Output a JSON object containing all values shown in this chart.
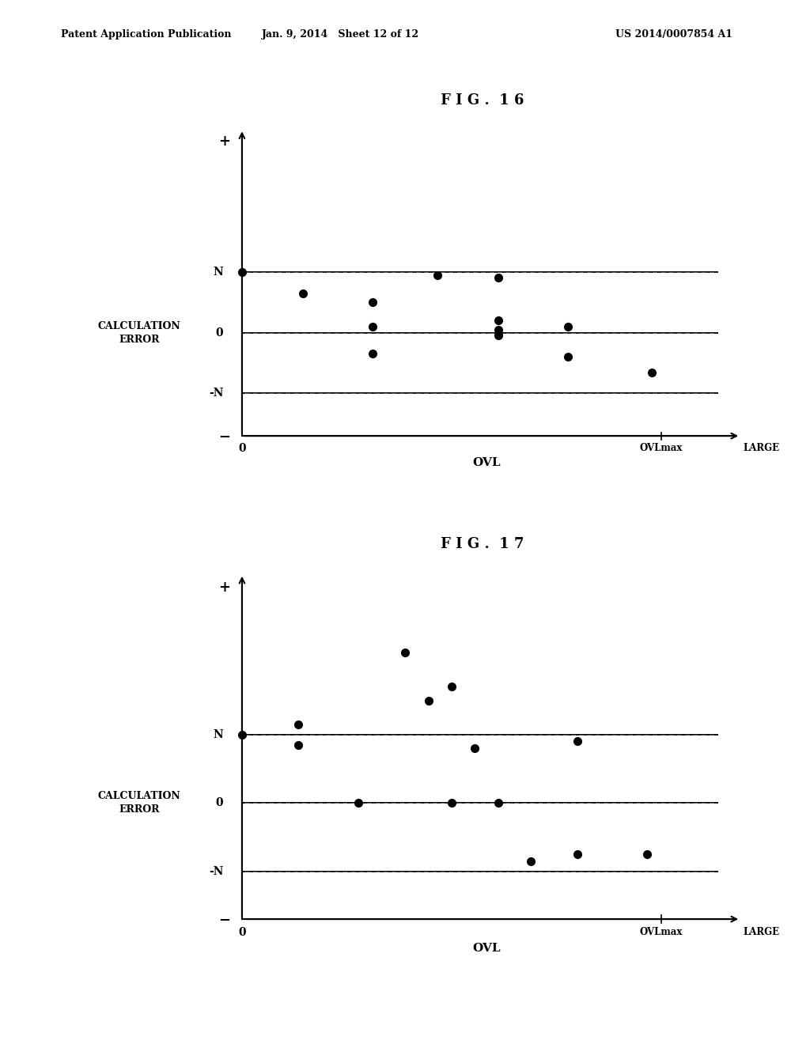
{
  "header_left": "Patent Application Publication",
  "header_center": "Jan. 9, 2014   Sheet 12 of 12",
  "header_right": "US 2014/0007854 A1",
  "fig16_title": "F I G .  1 6",
  "fig17_title": "F I G .  1 7",
  "ylabel": "CALCULATION\nERROR",
  "xlabel": "OVL",
  "bg_color": "#ffffff",
  "N_level": 3.0,
  "zero_level": 2.0,
  "negN_level": 1.0,
  "y_max": 5.5,
  "y_min": 0.0,
  "x_min": 0.0,
  "x_max": 10.5,
  "ovlmax_x": 9.0,
  "axis_bottom_y": 0.3,
  "fig16_dots_x": [
    0.0,
    1.3,
    2.8,
    2.8,
    2.8,
    4.2,
    5.5,
    5.5,
    5.5,
    5.5,
    7.0,
    7.0,
    8.8
  ],
  "fig16_dots_y": [
    3.0,
    2.65,
    2.5,
    2.1,
    1.65,
    2.95,
    2.9,
    2.2,
    2.05,
    1.95,
    2.1,
    1.6,
    1.35
  ],
  "fig17_dots_x": [
    0.0,
    1.2,
    1.2,
    2.5,
    3.5,
    4.0,
    4.5,
    4.5,
    5.0,
    5.5,
    6.2,
    7.2,
    7.2,
    8.7
  ],
  "fig17_dots_y": [
    3.0,
    3.15,
    2.85,
    2.0,
    4.2,
    3.5,
    3.7,
    2.0,
    2.8,
    2.0,
    1.15,
    2.9,
    1.25,
    1.25
  ],
  "dot_size": 7,
  "hline_lw": 1.4,
  "axis_lw": 1.5
}
